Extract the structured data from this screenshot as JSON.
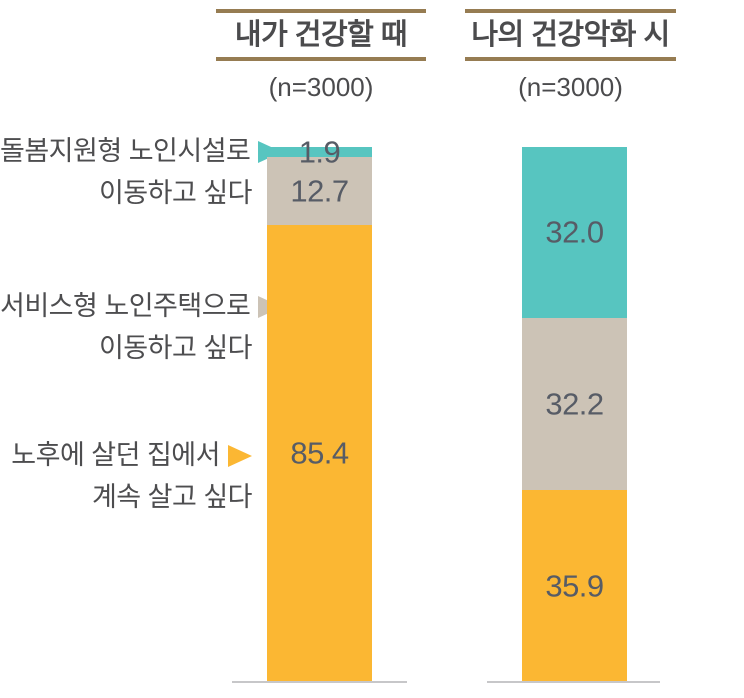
{
  "headers": [
    {
      "title": "내가 건강할 때",
      "n_label": "(n=3000)"
    },
    {
      "title": "나의 건강악화 시",
      "n_label": "(n=3000)"
    }
  ],
  "row_labels": [
    {
      "line1": "돌봄지원형 노인시설로",
      "line2": "이동하고 싶다",
      "series": "teal"
    },
    {
      "line1": "서비스형 노인주택으로",
      "line2": "이동하고 싶다",
      "series": "beige"
    },
    {
      "line1": "노후에 살던 집에서",
      "line2": "계속 살고 싶다",
      "series": "yellow"
    }
  ],
  "colors": {
    "teal": "#57C5C0",
    "beige": "#CCC3B6",
    "yellow": "#FBB733",
    "header_line": "#967C52",
    "title_text": "#4B4B4D",
    "label_text": "#4D4D4F",
    "value_text": "#575C66",
    "baseline": "#C7C7C9"
  },
  "bars": [
    {
      "segments": [
        {
          "color": "teal",
          "value": 1.9,
          "label": "1.9"
        },
        {
          "color": "beige",
          "value": 12.7,
          "label": "12.7"
        },
        {
          "color": "yellow",
          "value": 85.4,
          "label": "85.4"
        }
      ]
    },
    {
      "segments": [
        {
          "color": "teal",
          "value": 32.0,
          "label": "32.0"
        },
        {
          "color": "beige",
          "value": 32.2,
          "label": "32.2"
        },
        {
          "color": "yellow",
          "value": 35.9,
          "label": "35.9"
        }
      ]
    }
  ],
  "chart_data": {
    "type": "bar",
    "subtype": "100-percent-stacked-columns",
    "title": "",
    "unit": "percent",
    "ylim": [
      0,
      100
    ],
    "grid": false,
    "legend_position": "left",
    "columns": [
      "내가 건강할 때 (n=3000)",
      "나의 건강악화 시 (n=3000)"
    ],
    "categories": [
      "돌봄지원형 노인시설로 이동하고 싶다",
      "서비스형 노인주택으로 이동하고 싶다",
      "노후에 살던 집에서 계속 살고 싶다"
    ],
    "series": [
      {
        "name": "돌봄지원형 노인시설로 이동하고 싶다",
        "color": "#57C5C0",
        "values": [
          1.9,
          32.0
        ]
      },
      {
        "name": "서비스형 노인주택으로 이동하고 싶다",
        "color": "#CCC3B6",
        "values": [
          12.7,
          32.2
        ]
      },
      {
        "name": "노후에 살던 집에서 계속 살고 싶다",
        "color": "#FBB733",
        "values": [
          85.4,
          35.9
        ]
      }
    ],
    "segment_order_top_to_bottom": [
      "teal",
      "beige",
      "yellow"
    ]
  }
}
